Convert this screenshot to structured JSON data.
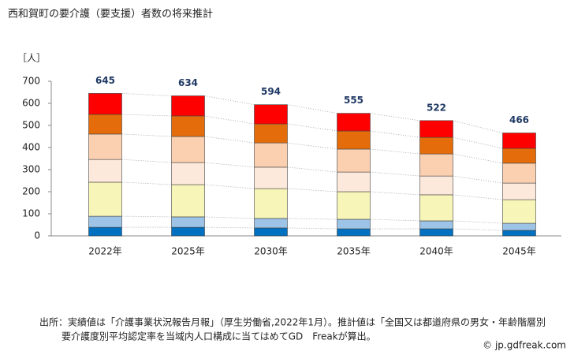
{
  "chart_data": {
    "type": "stacked-bar",
    "title": "西和賀町の要介護（要支援）者数の将来推計",
    "ylabel": "［人］",
    "categories": [
      "2022年",
      "2025年",
      "2030年",
      "2035年",
      "2040年",
      "2045年"
    ],
    "series": [
      {
        "color": "#0070c0",
        "values": [
          39,
          39,
          36,
          32,
          32,
          25
        ]
      },
      {
        "color": "#9dc3e6",
        "values": [
          50,
          47,
          43,
          43,
          36,
          32
        ]
      },
      {
        "color": "#f7f5b8",
        "values": [
          154,
          146,
          135,
          125,
          118,
          107
        ]
      },
      {
        "color": "#fde9dc",
        "values": [
          103,
          100,
          97,
          89,
          85,
          75
        ]
      },
      {
        "color": "#fbd0b0",
        "values": [
          115,
          118,
          110,
          104,
          100,
          90
        ]
      },
      {
        "color": "#e46c0a",
        "values": [
          89,
          93,
          86,
          82,
          75,
          67
        ]
      },
      {
        "color": "#ff0000",
        "values": [
          95,
          91,
          87,
          80,
          76,
          70
        ]
      }
    ],
    "totals": [
      645,
      634,
      594,
      555,
      522,
      466
    ],
    "ylim": [
      0,
      700
    ],
    "yticks": [
      0,
      100,
      200,
      300,
      400,
      500,
      600,
      700
    ],
    "notes": [
      "出所：実績値は「介護事業状況報告月報」（厚生労働省,2022年1月）。推計値は「全国又は都道府県の男女・年齢階層別",
      "要介護度別平均認定率を当域内人口構成に当てはめてGD　Freakが算出。"
    ],
    "credit": "© jp.gdfreak.com"
  }
}
